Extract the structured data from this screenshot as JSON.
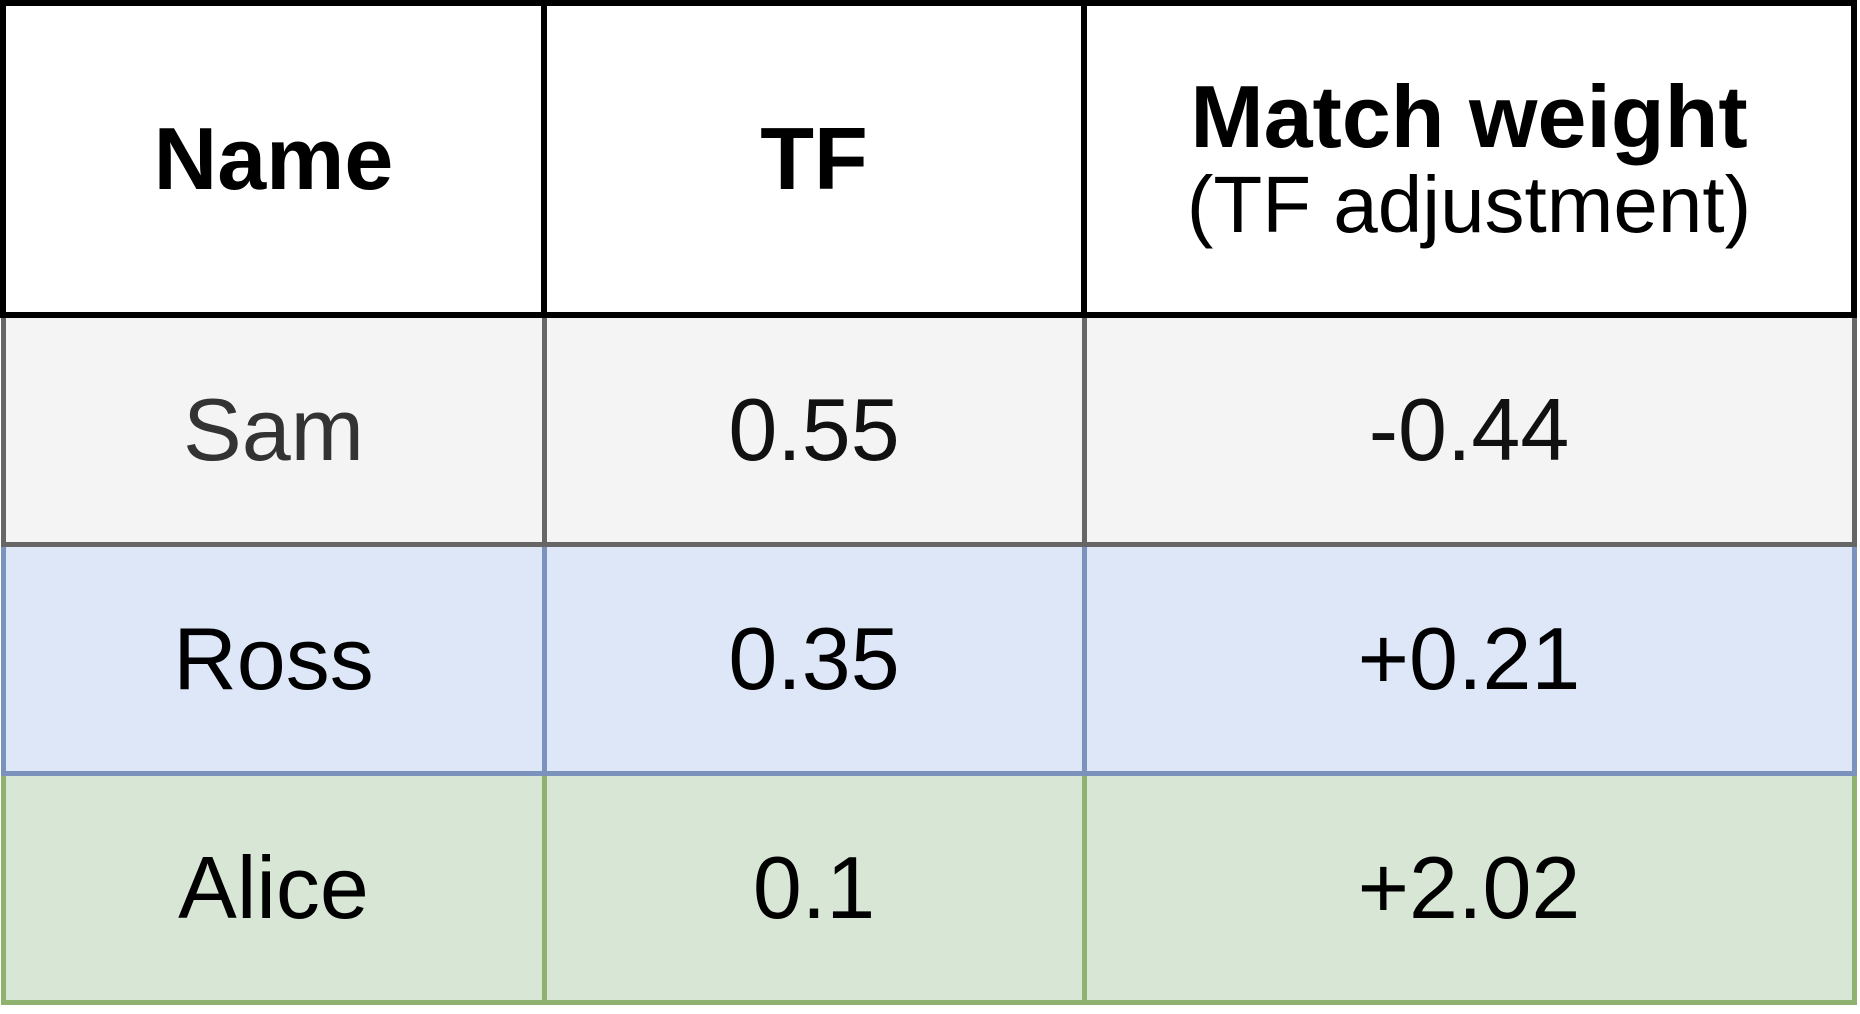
{
  "table": {
    "headers": {
      "name": "Name",
      "tf": "TF",
      "match_weight": "Match weight",
      "match_weight_sub": "(TF adjustment)"
    },
    "rows": [
      {
        "name": "Sam",
        "tf": "0.55",
        "match_weight": "-0.44",
        "fill": "#f4f4f4",
        "border": "#666666"
      },
      {
        "name": "Ross",
        "tf": "0.35",
        "match_weight": "+0.21",
        "fill": "#dde7f8",
        "border": "#7b93bc"
      },
      {
        "name": "Alice",
        "tf": "0.1",
        "match_weight": "+2.02",
        "fill": "#d8e7d5",
        "border": "#8fb270"
      }
    ]
  }
}
